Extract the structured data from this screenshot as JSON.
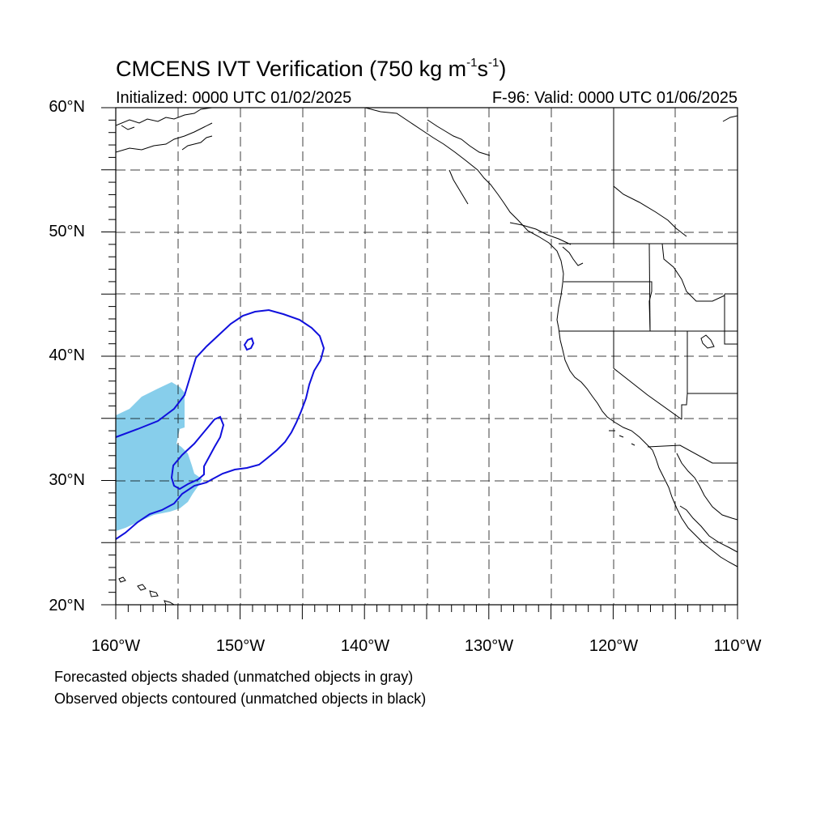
{
  "title": {
    "prefix": "CMCENS IVT Verification (750 kg m",
    "exp1": "-1",
    "mid": "s",
    "exp2": "-1",
    "suffix": ")"
  },
  "subtitle_left": "Initialized: 0000 UTC 01/02/2025",
  "subtitle_right": "F-96: Valid: 0000 UTC 01/06/2025",
  "lat_labels": [
    "60°N",
    "50°N",
    "40°N",
    "30°N",
    "20°N"
  ],
  "lon_labels": [
    "160°W",
    "150°W",
    "140°W",
    "130°W",
    "120°W",
    "110°W"
  ],
  "notes": [
    "Forecasted objects shaded (unmatched objects in gray)",
    "Observed objects contoured (unmatched objects in black)"
  ],
  "colors": {
    "forecast_fill": "#87ceeb",
    "observed_contour": "#1010dd",
    "coastline": "#000000",
    "grid": "#000000"
  },
  "map_extent": {
    "lon_min": -160,
    "lon_max": -110,
    "lat_min": 20,
    "lat_max": 60
  }
}
